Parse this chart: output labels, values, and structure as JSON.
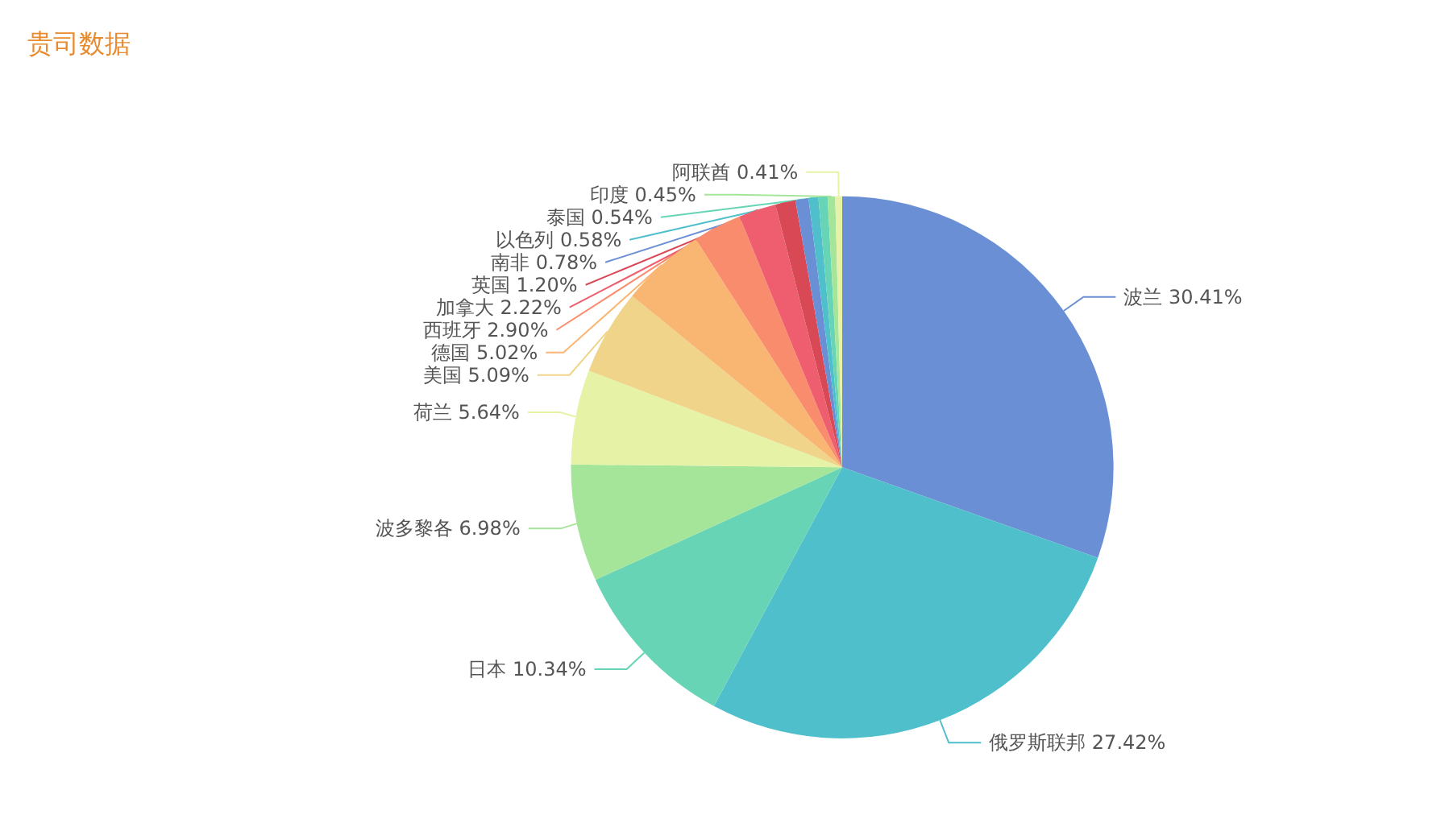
{
  "chart_data": {
    "type": "pie",
    "title": "贵司数据",
    "categories": [
      "波兰",
      "俄罗斯联邦",
      "日本",
      "波多黎各",
      "荷兰",
      "美国",
      "德国",
      "西班牙",
      "加拿大",
      "英国",
      "南非",
      "以色列",
      "泰国",
      "印度",
      "阿联酋"
    ],
    "values": [
      30.41,
      27.42,
      10.34,
      6.98,
      5.64,
      5.09,
      5.02,
      2.9,
      2.22,
      1.2,
      0.78,
      0.58,
      0.54,
      0.45,
      0.41
    ],
    "colors": [
      "#6a8fd4",
      "#50bfcc",
      "#67d5b5",
      "#a5e59a",
      "#e6f2a6",
      "#efd48a",
      "#f9b672",
      "#fa8c6e",
      "#ef5e6e",
      "#d94855",
      "#6a8fd4",
      "#50bfcc",
      "#67d5b5",
      "#a5e59a",
      "#e6f2a6"
    ],
    "value_labels": [
      "30.41%",
      "27.42%",
      "10.34%",
      "6.98%",
      "5.64%",
      "5.09%",
      "5.02%",
      "2.90%",
      "2.22%",
      "1.20%",
      "0.78%",
      "0.58%",
      "0.54%",
      "0.45%",
      "0.41%"
    ],
    "legend": false
  }
}
